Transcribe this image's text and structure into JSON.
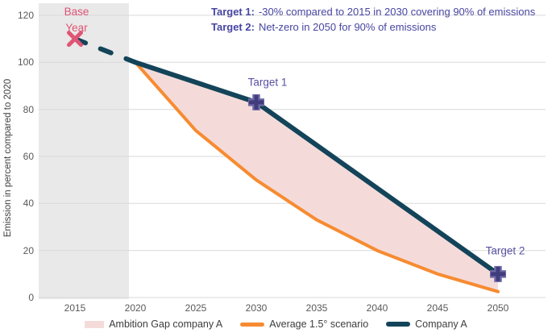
{
  "chart_data": {
    "type": "line",
    "title": "",
    "xlabel": "",
    "ylabel": "Emission in percent compared to 2020",
    "x_ticks": [
      2015,
      2020,
      2025,
      2030,
      2035,
      2040,
      2045,
      2050
    ],
    "y_ticks": [
      120,
      100,
      80,
      60,
      40,
      20,
      0
    ],
    "ylim": [
      0,
      120
    ],
    "grid": "horizontal",
    "pre_2020_band": "gray shaded region covering years before 2020",
    "series": [
      {
        "name": "Company A",
        "type": "line",
        "color": "#134459",
        "dashed_until": 2020,
        "x": [
          2015,
          2020,
          2030,
          2050
        ],
        "values": [
          110,
          100,
          83,
          10
        ]
      },
      {
        "name": "Average 1.5° scenario",
        "type": "line",
        "color": "#f78b31",
        "x": [
          2020,
          2025,
          2030,
          2035,
          2040,
          2045,
          2050
        ],
        "values": [
          100,
          71,
          50,
          33,
          20,
          10,
          2.5
        ]
      },
      {
        "name": "Ambition Gap company A",
        "type": "area-between",
        "color": "#f4dbda",
        "between": [
          "Company A",
          "Average 1.5° scenario"
        ]
      }
    ],
    "markers": [
      {
        "label": "Base Year",
        "shape": "x",
        "x": 2015,
        "value": 110,
        "color": "#df5574"
      },
      {
        "label": "Target 1",
        "shape": "plus",
        "x": 2030,
        "value": 83,
        "color": "#413d7c"
      },
      {
        "label": "Target 2",
        "shape": "plus",
        "x": 2050,
        "value": 10,
        "color": "#413d7c"
      }
    ],
    "legend_position": "bottom-center"
  },
  "annotations": {
    "target1_label": "Target 1:",
    "target1_text": "-30% compared to 2015 in 2030 covering 90% of emissions",
    "target2_label": "Target 2:",
    "target2_text": "Net-zero in 2050 for 90% of emissions",
    "base_year": "Base Year",
    "point_label_1": "Target 1",
    "point_label_2": "Target 2"
  },
  "axis": {
    "y_title": "Emission in percent compared to 2020"
  },
  "legend": {
    "items": [
      {
        "label": "Ambition Gap company A",
        "swatch": "area"
      },
      {
        "label": "Average 1.5° scenario",
        "swatch": "line-orange"
      },
      {
        "label": "Company A",
        "swatch": "line-navy"
      }
    ]
  },
  "colors": {
    "company_a": "#134459",
    "scenario": "#f78b31",
    "ambition_gap": "#f4dbda",
    "band": "#e9e9e9",
    "gridline": "#d9d9d9",
    "base_year": "#df5574",
    "annotation": "#4745a1",
    "point_label": "#5751a3",
    "plus_core": "#413d7c",
    "plus_halo": "#6f6aa8",
    "tick_text": "#595959",
    "legend_text": "#3d3d3d"
  }
}
